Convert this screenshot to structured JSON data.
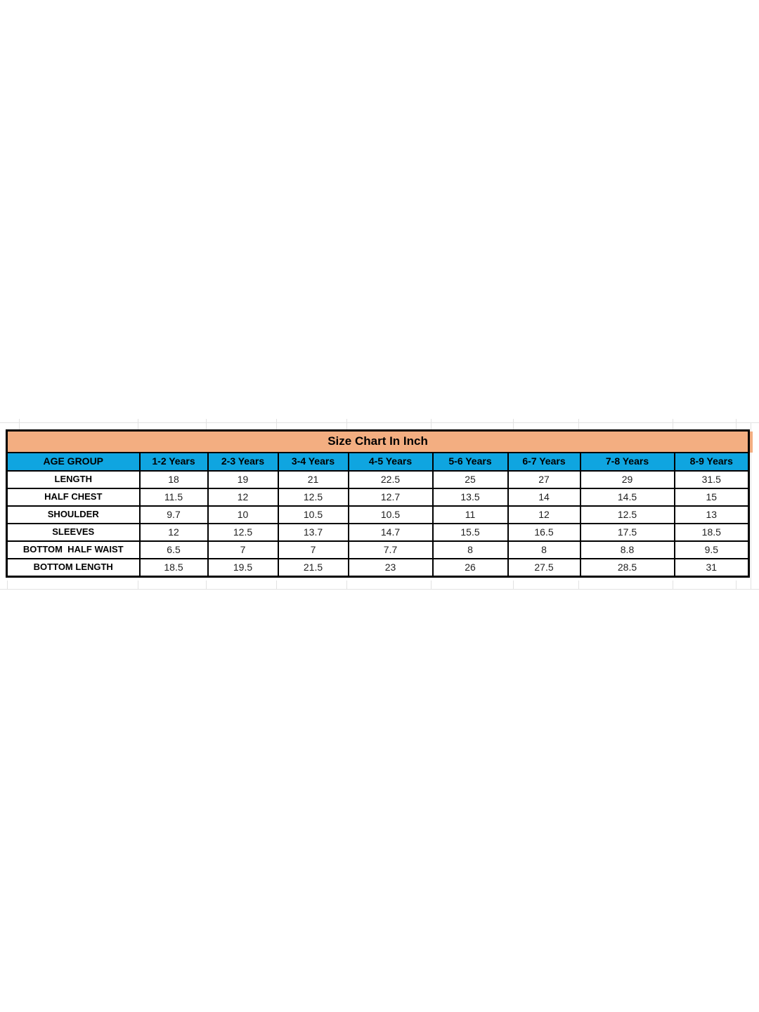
{
  "colors": {
    "title_bg": "#f3ae81",
    "header_bg": "#0fa5e0",
    "table_border": "#000000",
    "gridline": "#e2e2e2",
    "text": "#1f1f1f"
  },
  "chart_data": {
    "type": "table",
    "title": "Size Chart In Inch",
    "columns": [
      "AGE GROUP",
      "1-2 Years",
      "2-3 Years",
      "3-4 Years",
      "4-5 Years",
      "5-6 Years",
      "6-7 Years",
      "7-8 Years",
      "8-9 Years"
    ],
    "rows": [
      {
        "label": "LENGTH",
        "values": [
          "18",
          "19",
          "21",
          "22.5",
          "25",
          "27",
          "29",
          "31.5"
        ]
      },
      {
        "label": "HALF CHEST",
        "values": [
          "11.5",
          "12",
          "12.5",
          "12.7",
          "13.5",
          "14",
          "14.5",
          "15"
        ]
      },
      {
        "label": "SHOULDER",
        "values": [
          "9.7",
          "10",
          "10.5",
          "10.5",
          "11",
          "12",
          "12.5",
          "13"
        ]
      },
      {
        "label": "SLEEVES",
        "values": [
          "12",
          "12.5",
          "13.7",
          "14.7",
          "15.5",
          "16.5",
          "17.5",
          "18.5"
        ]
      },
      {
        "label": "BOTTOM  HALF WAIST",
        "values": [
          "6.5",
          "7",
          "7",
          "7.7",
          "8",
          "8",
          "8.8",
          "9.5"
        ]
      },
      {
        "label": "BOTTOM LENGTH",
        "values": [
          "18.5",
          "19.5",
          "21.5",
          "23",
          "26",
          "27.5",
          "28.5",
          "31"
        ]
      }
    ],
    "units": "inches",
    "layout": {
      "grid": "black 2px cell borders, 3px outer frame",
      "legend_position": "none"
    }
  }
}
